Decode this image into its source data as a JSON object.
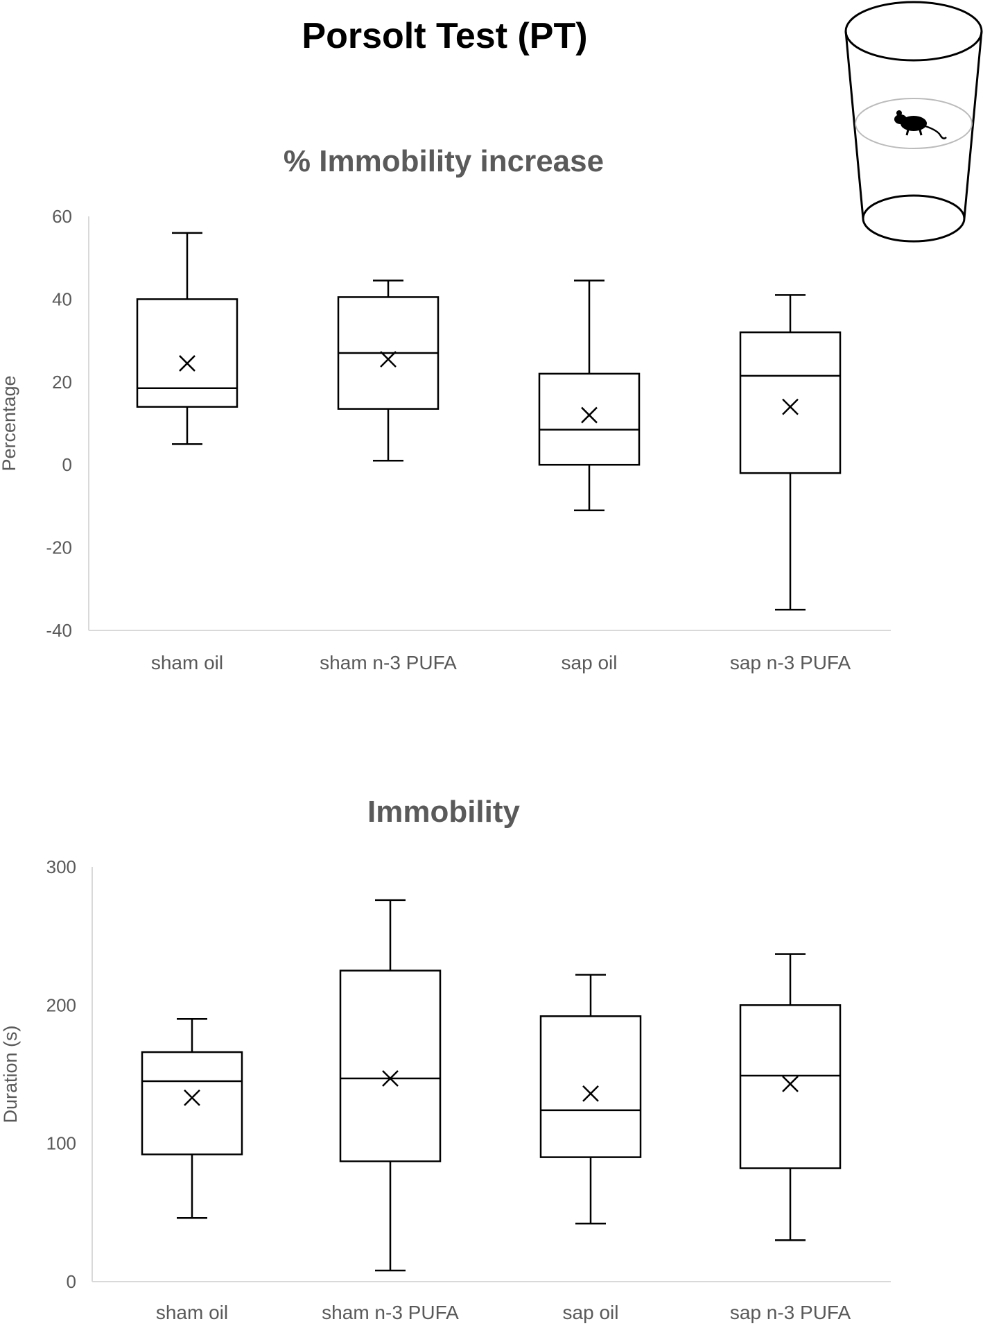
{
  "main_title": "Porsolt Test (PT)",
  "icon": "beaker-with-mouse-icon",
  "chart_data": [
    {
      "type": "box",
      "title": "% Immobility increase",
      "xlabel": "",
      "ylabel": "Percentage",
      "ylim": [
        -40,
        60
      ],
      "yticks": [
        60,
        40,
        20,
        0,
        -20,
        -40
      ],
      "categories": [
        "sham oil",
        "sham n-3 PUFA",
        "sap oil",
        "sap n-3 PUFA"
      ],
      "boxes": [
        {
          "min": 5,
          "q1": 14,
          "median": 18.5,
          "q3": 40,
          "max": 56,
          "mean": 24.5
        },
        {
          "min": 1,
          "q1": 13.5,
          "median": 27,
          "q3": 40.5,
          "max": 44.5,
          "mean": 25.5
        },
        {
          "min": -11,
          "q1": 0,
          "median": 8.5,
          "q3": 22,
          "max": 44.5,
          "mean": 12
        },
        {
          "min": -35,
          "q1": -2,
          "median": 21.5,
          "q3": 32,
          "max": 41,
          "mean": 14
        }
      ]
    },
    {
      "type": "box",
      "title": "Immobility",
      "xlabel": "",
      "ylabel": "Duration (s)",
      "ylim": [
        0,
        300
      ],
      "yticks": [
        300,
        200,
        100,
        0
      ],
      "categories": [
        "sham oil",
        "sham n-3 PUFA",
        "sap oil",
        "sap n-3 PUFA"
      ],
      "boxes": [
        {
          "min": 46,
          "q1": 92,
          "median": 145,
          "q3": 166,
          "max": 190,
          "mean": 133
        },
        {
          "min": 8,
          "q1": 87,
          "median": 147,
          "q3": 225,
          "max": 276,
          "mean": 147
        },
        {
          "min": 42,
          "q1": 90,
          "median": 124,
          "q3": 192,
          "max": 222,
          "mean": 136
        },
        {
          "min": 30,
          "q1": 82,
          "median": 149,
          "q3": 200,
          "max": 237,
          "mean": 143
        }
      ]
    }
  ]
}
